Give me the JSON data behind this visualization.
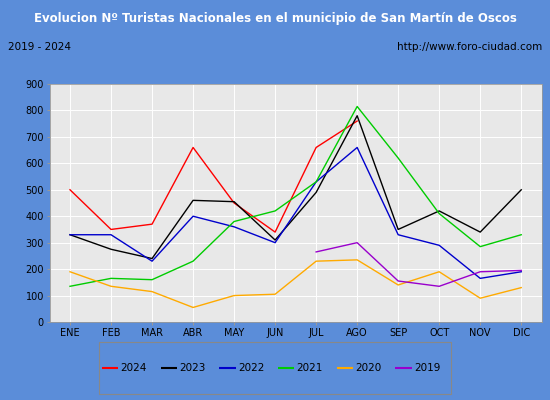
{
  "title": "Evolucion Nº Turistas Nacionales en el municipio de San Martín de Oscos",
  "subtitle_left": "2019 - 2024",
  "subtitle_right": "http://www.foro-ciudad.com",
  "months": [
    "ENE",
    "FEB",
    "MAR",
    "ABR",
    "MAY",
    "JUN",
    "JUL",
    "AGO",
    "SEP",
    "OCT",
    "NOV",
    "DIC"
  ],
  "series": {
    "2024": [
      500,
      350,
      370,
      660,
      450,
      340,
      660,
      760,
      null,
      null,
      null,
      null
    ],
    "2023": [
      330,
      275,
      240,
      460,
      455,
      310,
      490,
      780,
      350,
      420,
      340,
      500
    ],
    "2022": [
      330,
      330,
      230,
      400,
      360,
      300,
      530,
      660,
      330,
      290,
      165,
      190
    ],
    "2021": [
      135,
      165,
      160,
      230,
      380,
      420,
      530,
      815,
      620,
      410,
      285,
      330
    ],
    "2020": [
      190,
      135,
      115,
      55,
      100,
      105,
      230,
      235,
      140,
      190,
      90,
      130
    ],
    "2019": [
      null,
      null,
      null,
      null,
      null,
      null,
      265,
      300,
      155,
      135,
      190,
      195
    ]
  },
  "colors": {
    "2024": "#ff0000",
    "2023": "#000000",
    "2022": "#0000cc",
    "2021": "#00cc00",
    "2020": "#ffaa00",
    "2019": "#9900cc"
  },
  "ylim": [
    0,
    900
  ],
  "yticks": [
    0,
    100,
    200,
    300,
    400,
    500,
    600,
    700,
    800,
    900
  ],
  "title_bg": "#5b8dd9",
  "title_color": "#ffffff",
  "header_bg": "#f0f0f0",
  "header_border": "#888888",
  "plot_bg": "#e8e8e8",
  "grid_color": "#ffffff",
  "outer_bg": "#5b8dd9"
}
